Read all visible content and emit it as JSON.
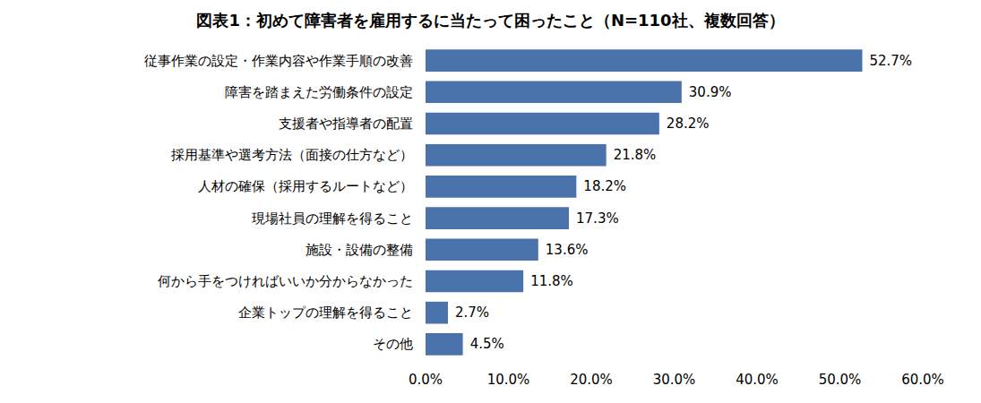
{
  "chart_data": {
    "type": "bar",
    "orientation": "horizontal",
    "title": "図表1：初めて障害者を雇用するに当たって困ったこと（N=110社、複数回答）",
    "categories": [
      "従事作業の設定・作業内容や作業手順の改善",
      "障害を踏まえた労働条件の設定",
      "支援者や指導者の配置",
      "採用基準や選考方法（面接の仕方など）",
      "人材の確保（採用するルートなど）",
      "現場社員の理解を得ること",
      "施設・設備の整備",
      "何から手をつければいいか分からなかった",
      "企業トップの理解を得ること",
      "その他"
    ],
    "values": [
      52.7,
      30.9,
      28.2,
      21.8,
      18.2,
      17.3,
      13.6,
      11.8,
      2.7,
      4.5
    ],
    "value_labels": [
      "52.7%",
      "30.9%",
      "28.2%",
      "21.8%",
      "18.2%",
      "17.3%",
      "13.6%",
      "11.8%",
      "2.7%",
      "4.5%"
    ],
    "color": "#4a72ab",
    "xlim": [
      0,
      60
    ],
    "xticks": [
      {
        "value": 0,
        "label": "0.0%"
      },
      {
        "value": 10,
        "label": "10.0%"
      },
      {
        "value": 20,
        "label": "20.0%"
      },
      {
        "value": 30,
        "label": "30.0%"
      },
      {
        "value": 40,
        "label": "40.0%"
      },
      {
        "value": 50,
        "label": "50.0%"
      },
      {
        "value": 60,
        "label": "60.0%"
      }
    ],
    "grid": false,
    "data_labels": true
  }
}
